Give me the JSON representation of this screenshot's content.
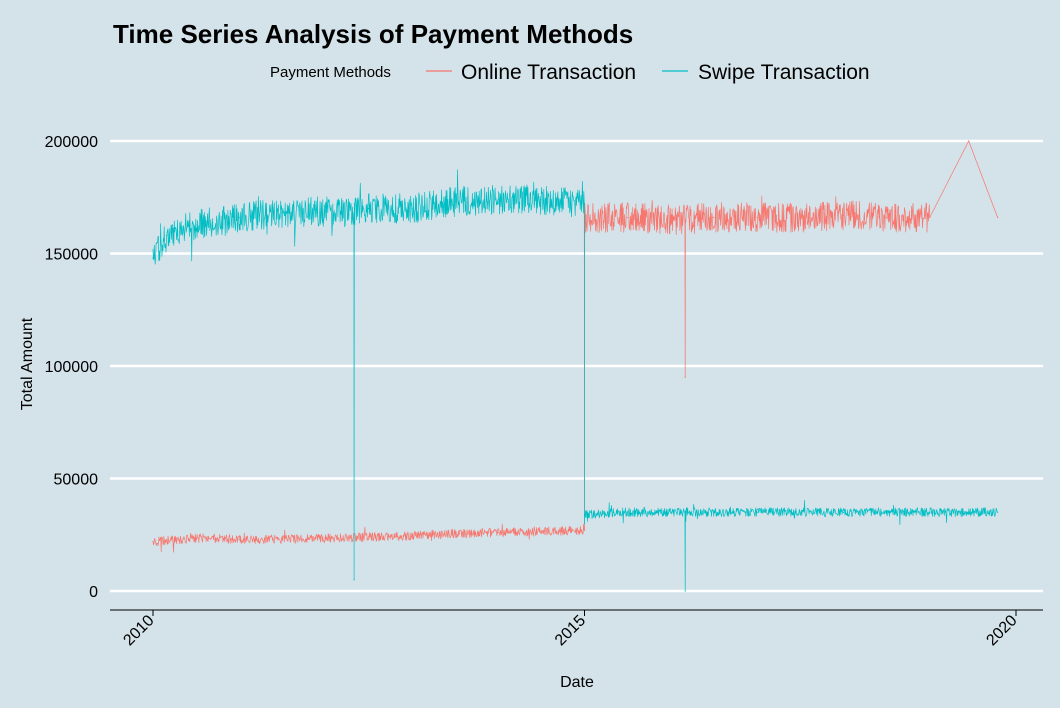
{
  "chart_data": {
    "type": "line",
    "title": "Time Series Analysis of Payment Methods",
    "xlabel": "Date",
    "ylabel": "Total Amount",
    "legend": {
      "title": "Payment Methods",
      "position": "top"
    },
    "xlim": [
      "2010-01-01",
      "2020-01-01"
    ],
    "ylim": [
      0,
      200000
    ],
    "x_ticks": [
      "2010",
      "2015",
      "2020"
    ],
    "y_ticks": [
      "0",
      "50000",
      "100000",
      "150000",
      "200000"
    ],
    "grid": true,
    "series": [
      {
        "name": "Online Transaction",
        "color": "#f8766d",
        "x": [
          "2010-01-01",
          "2010-07-01",
          "2011-01-01",
          "2011-07-01",
          "2012-01-01",
          "2012-07-01",
          "2013-01-01",
          "2013-07-01",
          "2014-01-01",
          "2014-07-01",
          "2015-01-01",
          "2015-01-02",
          "2015-07-01",
          "2016-01-01",
          "2016-03-01",
          "2016-03-02",
          "2016-03-03",
          "2016-07-01",
          "2017-01-01",
          "2017-07-01",
          "2018-01-01",
          "2018-07-01",
          "2019-01-01",
          "2019-06-15",
          "2019-10-15"
        ],
        "y": [
          22000,
          23500,
          23000,
          23000,
          23500,
          24000,
          24500,
          25500,
          26000,
          26500,
          27000,
          166000,
          166000,
          165000,
          165000,
          95000,
          165000,
          166000,
          166000,
          166000,
          167000,
          166000,
          166000,
          200000,
          166000
        ]
      },
      {
        "name": "Swipe Transaction",
        "color": "#00bfc4",
        "x": [
          "2010-01-01",
          "2010-03-01",
          "2010-07-01",
          "2011-01-01",
          "2011-07-01",
          "2012-01-01",
          "2012-04-30",
          "2012-05-01",
          "2012-05-02",
          "2012-07-01",
          "2013-01-01",
          "2013-07-01",
          "2014-01-01",
          "2014-07-01",
          "2014-12-31",
          "2015-01-01",
          "2015-01-02",
          "2015-07-01",
          "2016-01-01",
          "2016-03-01",
          "2016-03-02",
          "2016-03-03",
          "2016-07-01",
          "2017-01-01",
          "2017-07-01",
          "2018-01-01",
          "2018-07-01",
          "2019-01-01",
          "2019-10-15"
        ],
        "y": [
          148000,
          158000,
          163000,
          166000,
          168000,
          169000,
          168000,
          5000,
          168000,
          170000,
          170000,
          173000,
          174000,
          174000,
          172000,
          30000,
          34000,
          35000,
          35000,
          35000,
          0,
          35000,
          35000,
          35000,
          35000,
          35000,
          35000,
          35000,
          35000
        ]
      }
    ]
  }
}
